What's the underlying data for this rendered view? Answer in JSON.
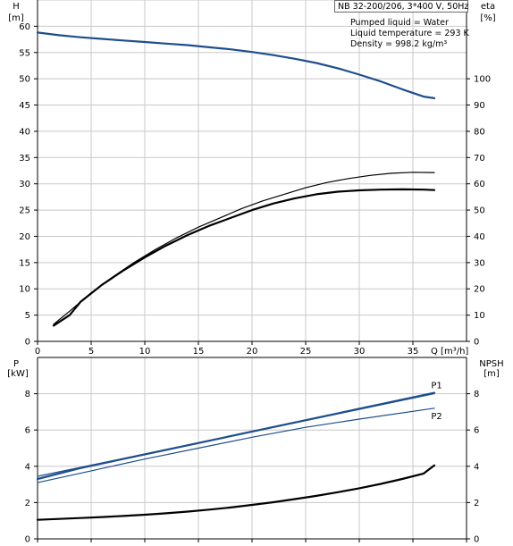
{
  "pump_model": "NB 32-200/206, 3*400 V, 50Hz",
  "info": {
    "pumped_liquid": "Pumped liquid = Water",
    "liquid_temperature": "Liquid temperature = 293 K",
    "density": "Density = 998.2 kg/m³"
  },
  "colors": {
    "blue": "#1f4e8c",
    "black": "#000000",
    "grid": "#c8c8c8"
  },
  "chart_data": [
    {
      "type": "line",
      "title": "",
      "xlabel": "Q [m³/h]",
      "ylabel": "H",
      "ylabel_unit": "[m]",
      "y2label": "eta",
      "y2label_unit": "[%]",
      "xlim": [
        0,
        40
      ],
      "ylim": [
        0,
        65
      ],
      "y2lim": [
        0,
        130
      ],
      "grid": true,
      "x_ticks": [
        0,
        5,
        10,
        15,
        20,
        25,
        30,
        35
      ],
      "y_ticks": [
        0,
        5,
        10,
        15,
        20,
        25,
        30,
        35,
        40,
        45,
        50,
        55,
        60
      ],
      "y2_ticks": [
        0,
        10,
        20,
        30,
        40,
        50,
        60,
        70,
        80,
        90,
        100
      ],
      "series": [
        {
          "axis": "left",
          "color": "#1f4e8c",
          "width": 2.2,
          "x": [
            0,
            2,
            4,
            6,
            8,
            10,
            12,
            14,
            16,
            18,
            20,
            22,
            24,
            26,
            28,
            30,
            32,
            34,
            36,
            37
          ],
          "values": [
            58.8,
            58.3,
            57.9,
            57.6,
            57.3,
            57.0,
            56.7,
            56.4,
            56.0,
            55.6,
            55.1,
            54.5,
            53.8,
            53.0,
            52.0,
            50.8,
            49.5,
            48.0,
            46.6,
            46.3
          ]
        },
        {
          "axis": "right",
          "color": "#000000",
          "width": 1.2,
          "x": [
            1.5,
            3,
            5,
            7,
            9,
            11,
            13,
            15,
            17,
            19,
            21,
            23,
            25,
            27,
            29,
            31,
            33,
            35,
            37
          ],
          "values": [
            6.5,
            11.5,
            18.5,
            24.5,
            30.0,
            35.0,
            39.5,
            43.5,
            47.0,
            50.5,
            53.5,
            56.0,
            58.5,
            60.5,
            62.0,
            63.2,
            64.0,
            64.4,
            64.3
          ]
        },
        {
          "axis": "right",
          "color": "#000000",
          "width": 2.2,
          "x": [
            1.5,
            3,
            4,
            6,
            8,
            10,
            12,
            14,
            16,
            18,
            20,
            22,
            24,
            26,
            28,
            30,
            32,
            34,
            36,
            37
          ],
          "values": [
            6.0,
            10.0,
            15.0,
            21.5,
            27.0,
            32.0,
            36.5,
            40.5,
            44.0,
            47.0,
            50.0,
            52.5,
            54.5,
            56.0,
            57.0,
            57.5,
            57.8,
            57.9,
            57.8,
            57.6
          ]
        }
      ]
    },
    {
      "type": "line",
      "title": "",
      "xlabel": "",
      "ylabel": "P",
      "ylabel_unit": "[kW]",
      "y2label": "NPSH",
      "y2label_unit": "[m]",
      "xlim": [
        0,
        40
      ],
      "ylim": [
        0,
        10
      ],
      "y2lim": [
        0,
        10
      ],
      "grid": true,
      "y_ticks": [
        0,
        2,
        4,
        6,
        8
      ],
      "y2_ticks": [
        0,
        2,
        4,
        6,
        8
      ],
      "series": [
        {
          "name": "P1",
          "axis": "left",
          "color": "#1f4e8c",
          "width": 2.2,
          "x": [
            0,
            4,
            37
          ],
          "values": [
            3.3,
            3.9,
            8.05
          ]
        },
        {
          "name": "P1",
          "axis": "left",
          "color": "#1f4e8c",
          "width": 1.2,
          "x": [
            0,
            37
          ],
          "values": [
            3.45,
            8.0
          ]
        },
        {
          "name": "P2",
          "axis": "left",
          "color": "#1f4e8c",
          "width": 1.2,
          "x": [
            0,
            5,
            10,
            15,
            20,
            25,
            30,
            37
          ],
          "values": [
            3.1,
            3.75,
            4.4,
            5.0,
            5.6,
            6.15,
            6.6,
            7.2
          ]
        },
        {
          "axis": "right",
          "color": "#000000",
          "width": 2.2,
          "x": [
            0,
            2,
            4,
            6,
            8,
            10,
            12,
            14,
            16,
            18,
            20,
            22,
            24,
            26,
            28,
            30,
            32,
            34,
            36,
            37
          ],
          "values": [
            1.05,
            1.1,
            1.15,
            1.2,
            1.26,
            1.33,
            1.41,
            1.5,
            1.61,
            1.73,
            1.87,
            2.02,
            2.19,
            2.37,
            2.57,
            2.79,
            3.03,
            3.3,
            3.6,
            4.05
          ]
        }
      ]
    }
  ]
}
